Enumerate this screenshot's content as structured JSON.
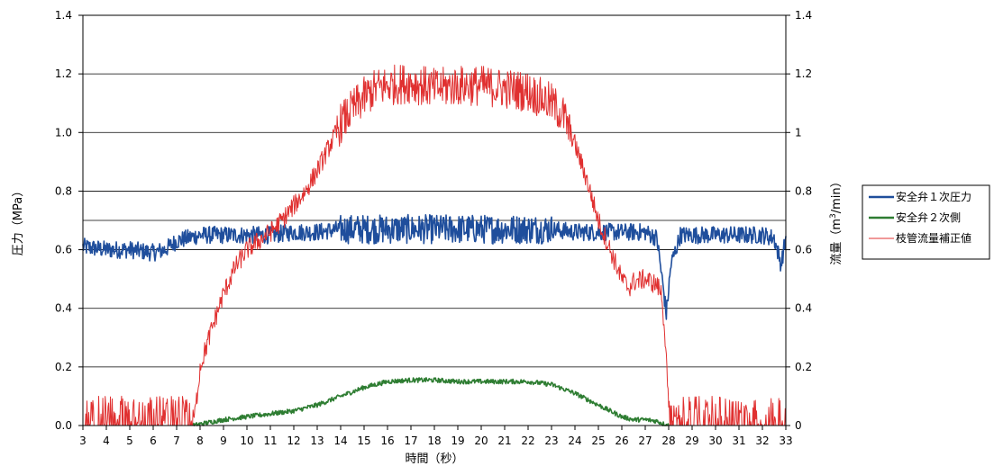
{
  "chart_data": {
    "type": "line",
    "title": "",
    "xlabel": "時間（秒）",
    "ylabel_left": "圧力（MPa）",
    "ylabel_right_prefix": "流量（m",
    "ylabel_right_sup": "3",
    "ylabel_right_suffix": "/min）",
    "xlim": [
      3,
      33
    ],
    "ylim_left": [
      0,
      1.4
    ],
    "ylim_right": [
      0,
      1.4
    ],
    "x_ticks": [
      "3",
      "4",
      "5",
      "6",
      "7",
      "8",
      "9",
      "10",
      "11",
      "12",
      "13",
      "14",
      "15",
      "16",
      "17",
      "18",
      "19",
      "20",
      "21",
      "22",
      "23",
      "24",
      "25",
      "26",
      "27",
      "28",
      "29",
      "30",
      "31",
      "32",
      "33"
    ],
    "y_ticks_left": [
      "0.0",
      "0.2",
      "0.4",
      "0.6",
      "0.8",
      "1.0",
      "1.2",
      "1.4"
    ],
    "y_ticks_right": [
      "0",
      "0.2",
      "0.4",
      "0.6",
      "0.8",
      "1",
      "1.2",
      "1.4"
    ],
    "reference_line_y": 0.7,
    "grid": "horizontal",
    "legend_position": "right",
    "series": [
      {
        "name": "安全弁１次圧力",
        "color": "#1f4e9c",
        "axis": "left",
        "x": [
          3,
          4,
          5,
          6,
          6.5,
          7,
          8,
          9,
          10,
          11,
          12,
          13,
          14,
          15,
          16,
          17,
          18,
          19,
          20,
          21,
          22,
          23,
          24,
          25,
          26,
          27,
          27.5,
          27.8,
          27.9,
          28.1,
          28.5,
          29,
          30,
          31,
          32,
          32.5,
          32.8,
          33
        ],
        "y": [
          0.61,
          0.6,
          0.6,
          0.59,
          0.6,
          0.63,
          0.65,
          0.65,
          0.65,
          0.65,
          0.66,
          0.66,
          0.67,
          0.67,
          0.67,
          0.67,
          0.67,
          0.67,
          0.67,
          0.67,
          0.67,
          0.67,
          0.66,
          0.66,
          0.66,
          0.66,
          0.64,
          0.45,
          0.38,
          0.55,
          0.65,
          0.65,
          0.65,
          0.65,
          0.65,
          0.64,
          0.55,
          0.64
        ]
      },
      {
        "name": "安全弁２次側",
        "color": "#2e7d32",
        "axis": "left",
        "x": [
          7.7,
          8,
          9,
          10,
          11,
          12,
          13,
          14,
          15,
          16,
          17,
          18,
          19,
          20,
          21,
          22,
          23,
          24,
          25,
          26,
          26.5,
          27,
          27.5,
          27.8,
          28
        ],
        "y": [
          0,
          0.005,
          0.02,
          0.03,
          0.04,
          0.05,
          0.07,
          0.1,
          0.13,
          0.15,
          0.155,
          0.155,
          0.15,
          0.15,
          0.15,
          0.15,
          0.14,
          0.11,
          0.07,
          0.03,
          0.02,
          0.02,
          0.015,
          0.005,
          0
        ]
      },
      {
        "name": "枝管流量補正値",
        "color": "#e03030",
        "axis": "right",
        "x": [
          3,
          7.7,
          7.8,
          8,
          8.5,
          9,
          9.5,
          10,
          10.5,
          11,
          11.5,
          12,
          12.5,
          13,
          13.5,
          14,
          14.5,
          15,
          15.5,
          16,
          17,
          18,
          19,
          20,
          21,
          22,
          22.5,
          23,
          23.5,
          24,
          24.5,
          25,
          25.5,
          26,
          26.3,
          26.5,
          27,
          27.5,
          27.7,
          27.85,
          28,
          28.5,
          29,
          30,
          31,
          32,
          32.5,
          33
        ],
        "y": [
          0.02,
          0.02,
          0.05,
          0.2,
          0.33,
          0.45,
          0.54,
          0.6,
          0.63,
          0.66,
          0.7,
          0.75,
          0.8,
          0.87,
          0.95,
          1.03,
          1.08,
          1.12,
          1.15,
          1.16,
          1.17,
          1.15,
          1.16,
          1.16,
          1.15,
          1.14,
          1.12,
          1.1,
          1.06,
          0.96,
          0.84,
          0.7,
          0.6,
          0.5,
          0.47,
          0.49,
          0.5,
          0.48,
          0.45,
          0.3,
          0.05,
          0.06,
          0.05,
          0.04,
          0.04,
          0.05,
          0.1,
          0.3
        ]
      }
    ]
  }
}
